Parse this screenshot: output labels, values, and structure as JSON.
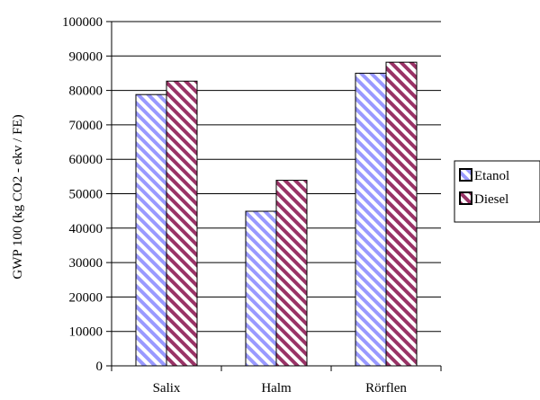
{
  "chart_data": {
    "type": "bar",
    "categories": [
      "Salix",
      "Halm",
      "Rörflen"
    ],
    "series": [
      {
        "name": "Etanol",
        "values": [
          78800,
          44900,
          85000
        ],
        "color": "#9999ff",
        "pattern": "diagonal-stripes"
      },
      {
        "name": "Diesel",
        "values": [
          82700,
          53900,
          88200
        ],
        "color": "#993366",
        "pattern": "diagonal-stripes"
      }
    ],
    "ylabel": "GWP 100 (kg CO2 - ekv / FE)",
    "xlabel": "",
    "ylim": [
      0,
      100000
    ],
    "yticks": [
      0,
      10000,
      20000,
      30000,
      40000,
      50000,
      60000,
      70000,
      80000,
      90000,
      100000
    ],
    "grid": true,
    "legend_position": "right"
  }
}
